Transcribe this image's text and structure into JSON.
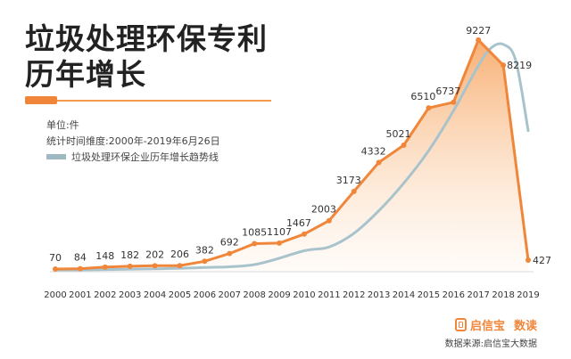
{
  "title_line1": "垃圾处理环保专利",
  "title_line2": "历年增长",
  "unit_text": "单位:件",
  "period_text": "统计时间维度:2000年-2019年6月26日",
  "legend_text": "垃圾处理环保企业历年增长趋势线",
  "brand": {
    "name": "启信宝",
    "suffix": "数读",
    "icon": "qixinbao-logo-icon"
  },
  "source_text": "数据来源:启信宝大数据",
  "colors": {
    "line": "#f0863a",
    "area_top": "#f7a764",
    "area_bottom": "#fff4ea",
    "trend": "#a9c3cc",
    "title_rule": "#f39a4c"
  },
  "chart_data": {
    "type": "area",
    "x": [
      "2000",
      "2001",
      "2002",
      "2003",
      "2004",
      "2005",
      "2006",
      "2007",
      "2008",
      "2009",
      "2010",
      "2011",
      "2012",
      "2013",
      "2014",
      "2015",
      "2016",
      "2017",
      "2018",
      "2019"
    ],
    "series": [
      {
        "values": [
          70,
          84,
          148,
          182,
          202,
          206,
          382,
          692,
          1085,
          1107,
          1467,
          2003,
          3173,
          4332,
          5021,
          6510,
          6737,
          9227,
          8219,
          427
        ]
      }
    ],
    "trend_line": {
      "label": "垃圾处理环保企业历年增长趋势线",
      "x": [
        "2000",
        "2002",
        "2004",
        "2006",
        "2008",
        "2010",
        "2011",
        "2012",
        "2013",
        "2014",
        "2015",
        "2016",
        "2017",
        "2017.5",
        "2018",
        "2018.5",
        "2019"
      ],
      "values": [
        30,
        50,
        80,
        130,
        250,
        800,
        950,
        1500,
        2400,
        3500,
        4800,
        6400,
        8200,
        8900,
        9050,
        8400,
        5600
      ]
    },
    "ylim": [
      0,
      9400
    ],
    "grid": false,
    "legend": "top-left"
  }
}
